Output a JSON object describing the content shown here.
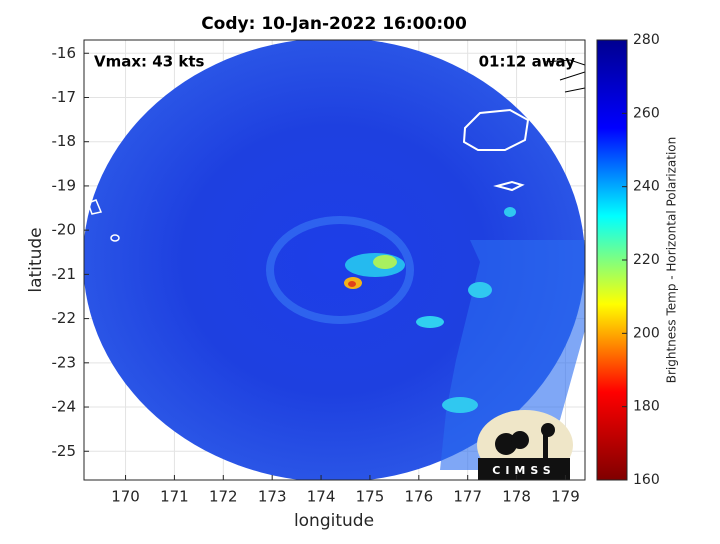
{
  "chart_data": {
    "type": "image",
    "title": "Cody: 10-Jan-2022 16:00:00",
    "xlabel": "longitude",
    "ylabel": "latitude",
    "xlim": [
      169.15,
      179.4
    ],
    "ylim": [
      -25.65,
      -15.7
    ],
    "xticks": [
      170,
      171,
      172,
      173,
      174,
      175,
      176,
      177,
      178,
      179
    ],
    "yticks": [
      -25,
      -24,
      -23,
      -22,
      -21,
      -20,
      -19,
      -18,
      -17,
      -16
    ],
    "grid": true,
    "annotations": [
      "Vmax: 43 kts",
      "01:12 away"
    ],
    "logo": "CIMSS",
    "colorbar": {
      "label": "Brightness Temp - Horizontal Polarization",
      "lim": [
        160,
        280
      ],
      "ticks": [
        160,
        180,
        200,
        220,
        240,
        260,
        280
      ],
      "colormap": "jet"
    }
  }
}
